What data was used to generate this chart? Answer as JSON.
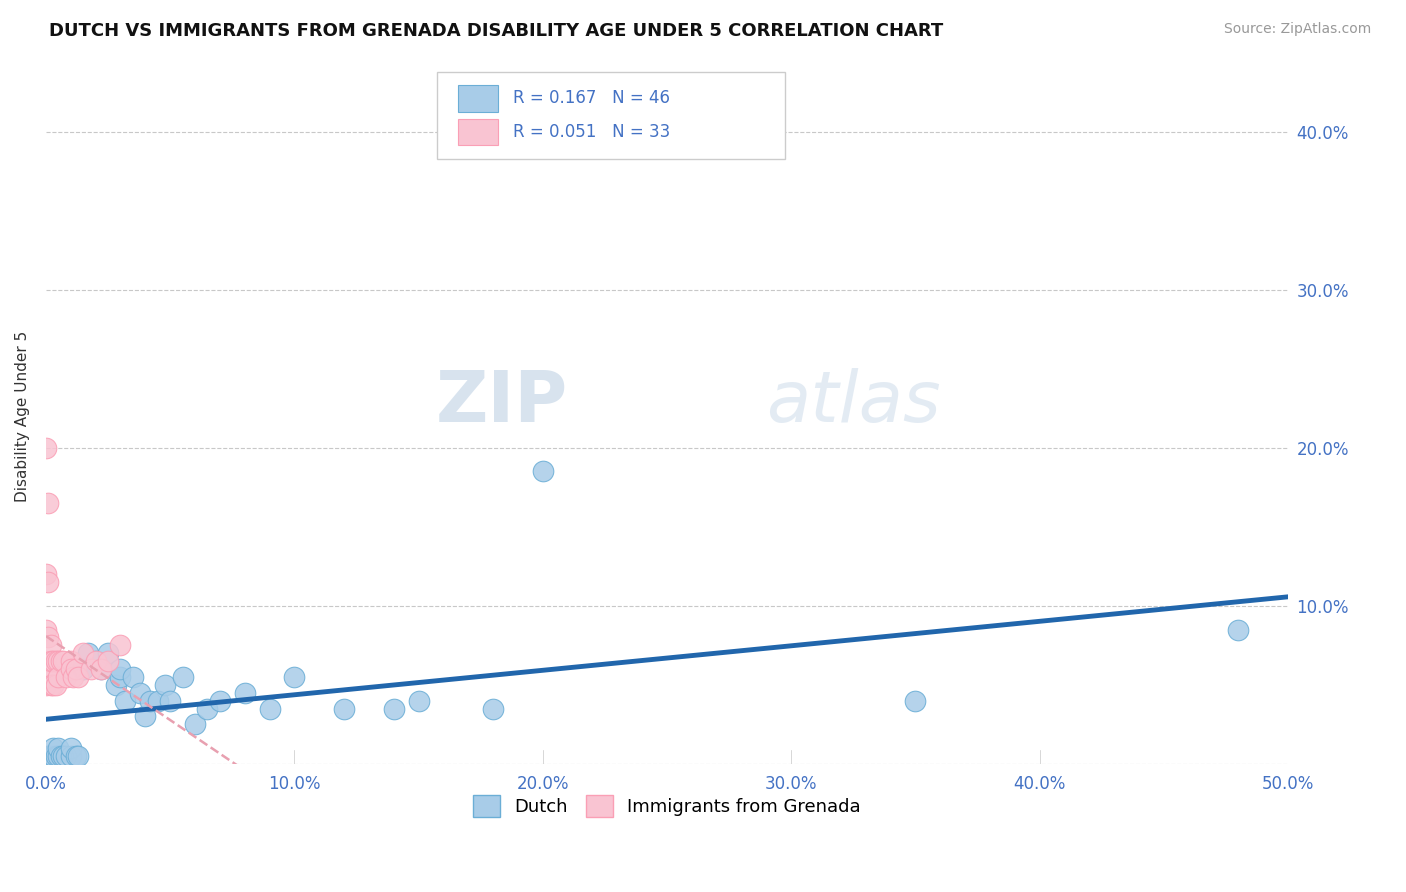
{
  "title": "DUTCH VS IMMIGRANTS FROM GRENADA DISABILITY AGE UNDER 5 CORRELATION CHART",
  "source_text": "Source: ZipAtlas.com",
  "ylabel": "Disability Age Under 5",
  "xlim": [
    0.0,
    0.5
  ],
  "ylim": [
    0.0,
    0.44
  ],
  "xticks": [
    0.0,
    0.1,
    0.2,
    0.3,
    0.4,
    0.5
  ],
  "yticks": [
    0.0,
    0.1,
    0.2,
    0.3,
    0.4
  ],
  "ytick_labels": [
    "",
    "10.0%",
    "20.0%",
    "30.0%",
    "40.0%"
  ],
  "xtick_labels": [
    "0.0%",
    "10.0%",
    "20.0%",
    "30.0%",
    "40.0%",
    "50.0%"
  ],
  "dutch_color": "#a8cce8",
  "dutch_edge_color": "#6baed6",
  "grenada_color": "#f9c4d2",
  "grenada_edge_color": "#fa9fb5",
  "trend_dutch_color": "#2166ac",
  "trend_grenada_color": "#e8a0b0",
  "dutch_R": 0.167,
  "dutch_N": 46,
  "grenada_R": 0.051,
  "grenada_N": 33,
  "legend_label_dutch": "Dutch",
  "legend_label_grenada": "Immigrants from Grenada",
  "background_color": "#ffffff",
  "grid_color": "#c8c8c8",
  "watermark": "ZIPatlas",
  "dutch_scatter_x": [
    0.001,
    0.001,
    0.002,
    0.003,
    0.003,
    0.004,
    0.005,
    0.005,
    0.006,
    0.007,
    0.008,
    0.01,
    0.01,
    0.012,
    0.013,
    0.015,
    0.015,
    0.017,
    0.02,
    0.022,
    0.025,
    0.028,
    0.03,
    0.03,
    0.032,
    0.035,
    0.038,
    0.04,
    0.042,
    0.045,
    0.048,
    0.05,
    0.055,
    0.06,
    0.065,
    0.07,
    0.08,
    0.09,
    0.1,
    0.12,
    0.14,
    0.15,
    0.18,
    0.2,
    0.35,
    0.48
  ],
  "dutch_scatter_y": [
    0.005,
    0.005,
    0.005,
    0.005,
    0.01,
    0.005,
    0.005,
    0.01,
    0.005,
    0.005,
    0.005,
    0.005,
    0.01,
    0.005,
    0.005,
    0.06,
    0.06,
    0.07,
    0.065,
    0.06,
    0.07,
    0.05,
    0.055,
    0.06,
    0.04,
    0.055,
    0.045,
    0.03,
    0.04,
    0.04,
    0.05,
    0.04,
    0.055,
    0.025,
    0.035,
    0.04,
    0.045,
    0.035,
    0.055,
    0.035,
    0.035,
    0.04,
    0.035,
    0.185,
    0.04,
    0.085
  ],
  "grenada_scatter_x": [
    0.0,
    0.0,
    0.0,
    0.0,
    0.0,
    0.001,
    0.001,
    0.001,
    0.001,
    0.001,
    0.002,
    0.002,
    0.002,
    0.003,
    0.003,
    0.004,
    0.004,
    0.005,
    0.005,
    0.006,
    0.007,
    0.008,
    0.01,
    0.01,
    0.011,
    0.012,
    0.013,
    0.015,
    0.018,
    0.02,
    0.022,
    0.025,
    0.03
  ],
  "grenada_scatter_y": [
    0.2,
    0.12,
    0.085,
    0.065,
    0.05,
    0.165,
    0.115,
    0.08,
    0.06,
    0.055,
    0.075,
    0.065,
    0.05,
    0.065,
    0.05,
    0.065,
    0.05,
    0.065,
    0.055,
    0.065,
    0.065,
    0.055,
    0.065,
    0.06,
    0.055,
    0.06,
    0.055,
    0.07,
    0.06,
    0.065,
    0.06,
    0.065,
    0.075
  ]
}
